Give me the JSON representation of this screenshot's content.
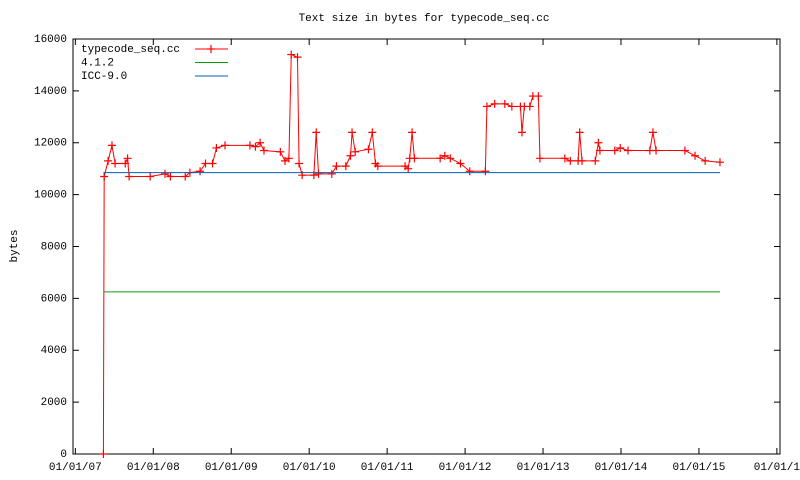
{
  "chart_data": {
    "type": "line",
    "title": "Text size in bytes for typecode_seq.cc",
    "y_label": "bytes",
    "xlim": [
      2006.97,
      2016.04
    ],
    "xticks": [
      {
        "value": 2007,
        "label": "01/01/07"
      },
      {
        "value": 2008,
        "label": "01/01/08"
      },
      {
        "value": 2009,
        "label": "01/01/09"
      },
      {
        "value": 2010,
        "label": "01/01/10"
      },
      {
        "value": 2011,
        "label": "01/01/11"
      },
      {
        "value": 2012,
        "label": "01/01/12"
      },
      {
        "value": 2013,
        "label": "01/01/13"
      },
      {
        "value": 2014,
        "label": "01/01/14"
      },
      {
        "value": 2015,
        "label": "01/01/15"
      },
      {
        "value": 2016,
        "label": "01/01/1"
      }
    ],
    "ylim": [
      0,
      16000
    ],
    "yticks": [
      0,
      2000,
      4000,
      6000,
      8000,
      10000,
      12000,
      14000,
      16000
    ],
    "grid": false,
    "legend": "top-left",
    "series": [
      {
        "name": "typecode_seq.cc",
        "color": "#ff0000",
        "markers": true,
        "x": [
          2007.36,
          2007.37,
          2007.42,
          2007.47,
          2007.51,
          2007.64,
          2007.67,
          2007.69,
          2007.96,
          2008.15,
          2008.22,
          2008.41,
          2008.47,
          2008.6,
          2008.67,
          2008.76,
          2008.81,
          2008.92,
          2009.24,
          2009.31,
          2009.37,
          2009.42,
          2009.63,
          2009.69,
          2009.74,
          2009.77,
          2009.85,
          2009.87,
          2009.91,
          2010.06,
          2010.09,
          2010.12,
          2010.29,
          2010.35,
          2010.47,
          2010.53,
          2010.55,
          2010.59,
          2010.76,
          2010.81,
          2010.85,
          2010.88,
          2011.23,
          2011.27,
          2011.29,
          2011.32,
          2011.35,
          2011.68,
          2011.74,
          2011.81,
          2011.94,
          2012.06,
          2012.26,
          2012.28,
          2012.38,
          2012.51,
          2012.6,
          2012.71,
          2012.73,
          2012.76,
          2012.83,
          2012.87,
          2012.94,
          2012.96,
          2013.28,
          2013.35,
          2013.45,
          2013.47,
          2013.5,
          2013.67,
          2013.71,
          2013.73,
          2013.92,
          2013.99,
          2014.09,
          2014.37,
          2014.41,
          2014.45,
          2014.82,
          2014.95,
          2015.08,
          2015.27
        ],
        "values": [
          0,
          10700,
          11300,
          11900,
          11200,
          11200,
          11400,
          10700,
          10700,
          10800,
          10700,
          10700,
          10850,
          10900,
          11200,
          11200,
          11800,
          11900,
          11900,
          11850,
          12000,
          11700,
          11650,
          11300,
          11400,
          15400,
          15300,
          11200,
          10750,
          10750,
          12400,
          10800,
          10800,
          11100,
          11100,
          11500,
          12400,
          11650,
          11750,
          12400,
          11200,
          11100,
          11100,
          11000,
          11400,
          12400,
          11400,
          11400,
          11500,
          11400,
          11200,
          10900,
          10900,
          13400,
          13500,
          13500,
          13400,
          13400,
          12400,
          13400,
          13400,
          13800,
          13800,
          11400,
          11400,
          11300,
          11300,
          12400,
          11300,
          11300,
          12000,
          11700,
          11700,
          11800,
          11700,
          11700,
          12400,
          11700,
          11700,
          11500,
          11300,
          11250
        ]
      },
      {
        "name": "4.1.2",
        "color": "#00a000",
        "markers": false,
        "x": [
          2007.36,
          2015.27
        ],
        "values": [
          6250,
          6250
        ]
      },
      {
        "name": "ICC-9.0",
        "color": "#0060ad",
        "markers": false,
        "x": [
          2007.36,
          2015.27
        ],
        "values": [
          10850,
          10850
        ]
      }
    ]
  }
}
